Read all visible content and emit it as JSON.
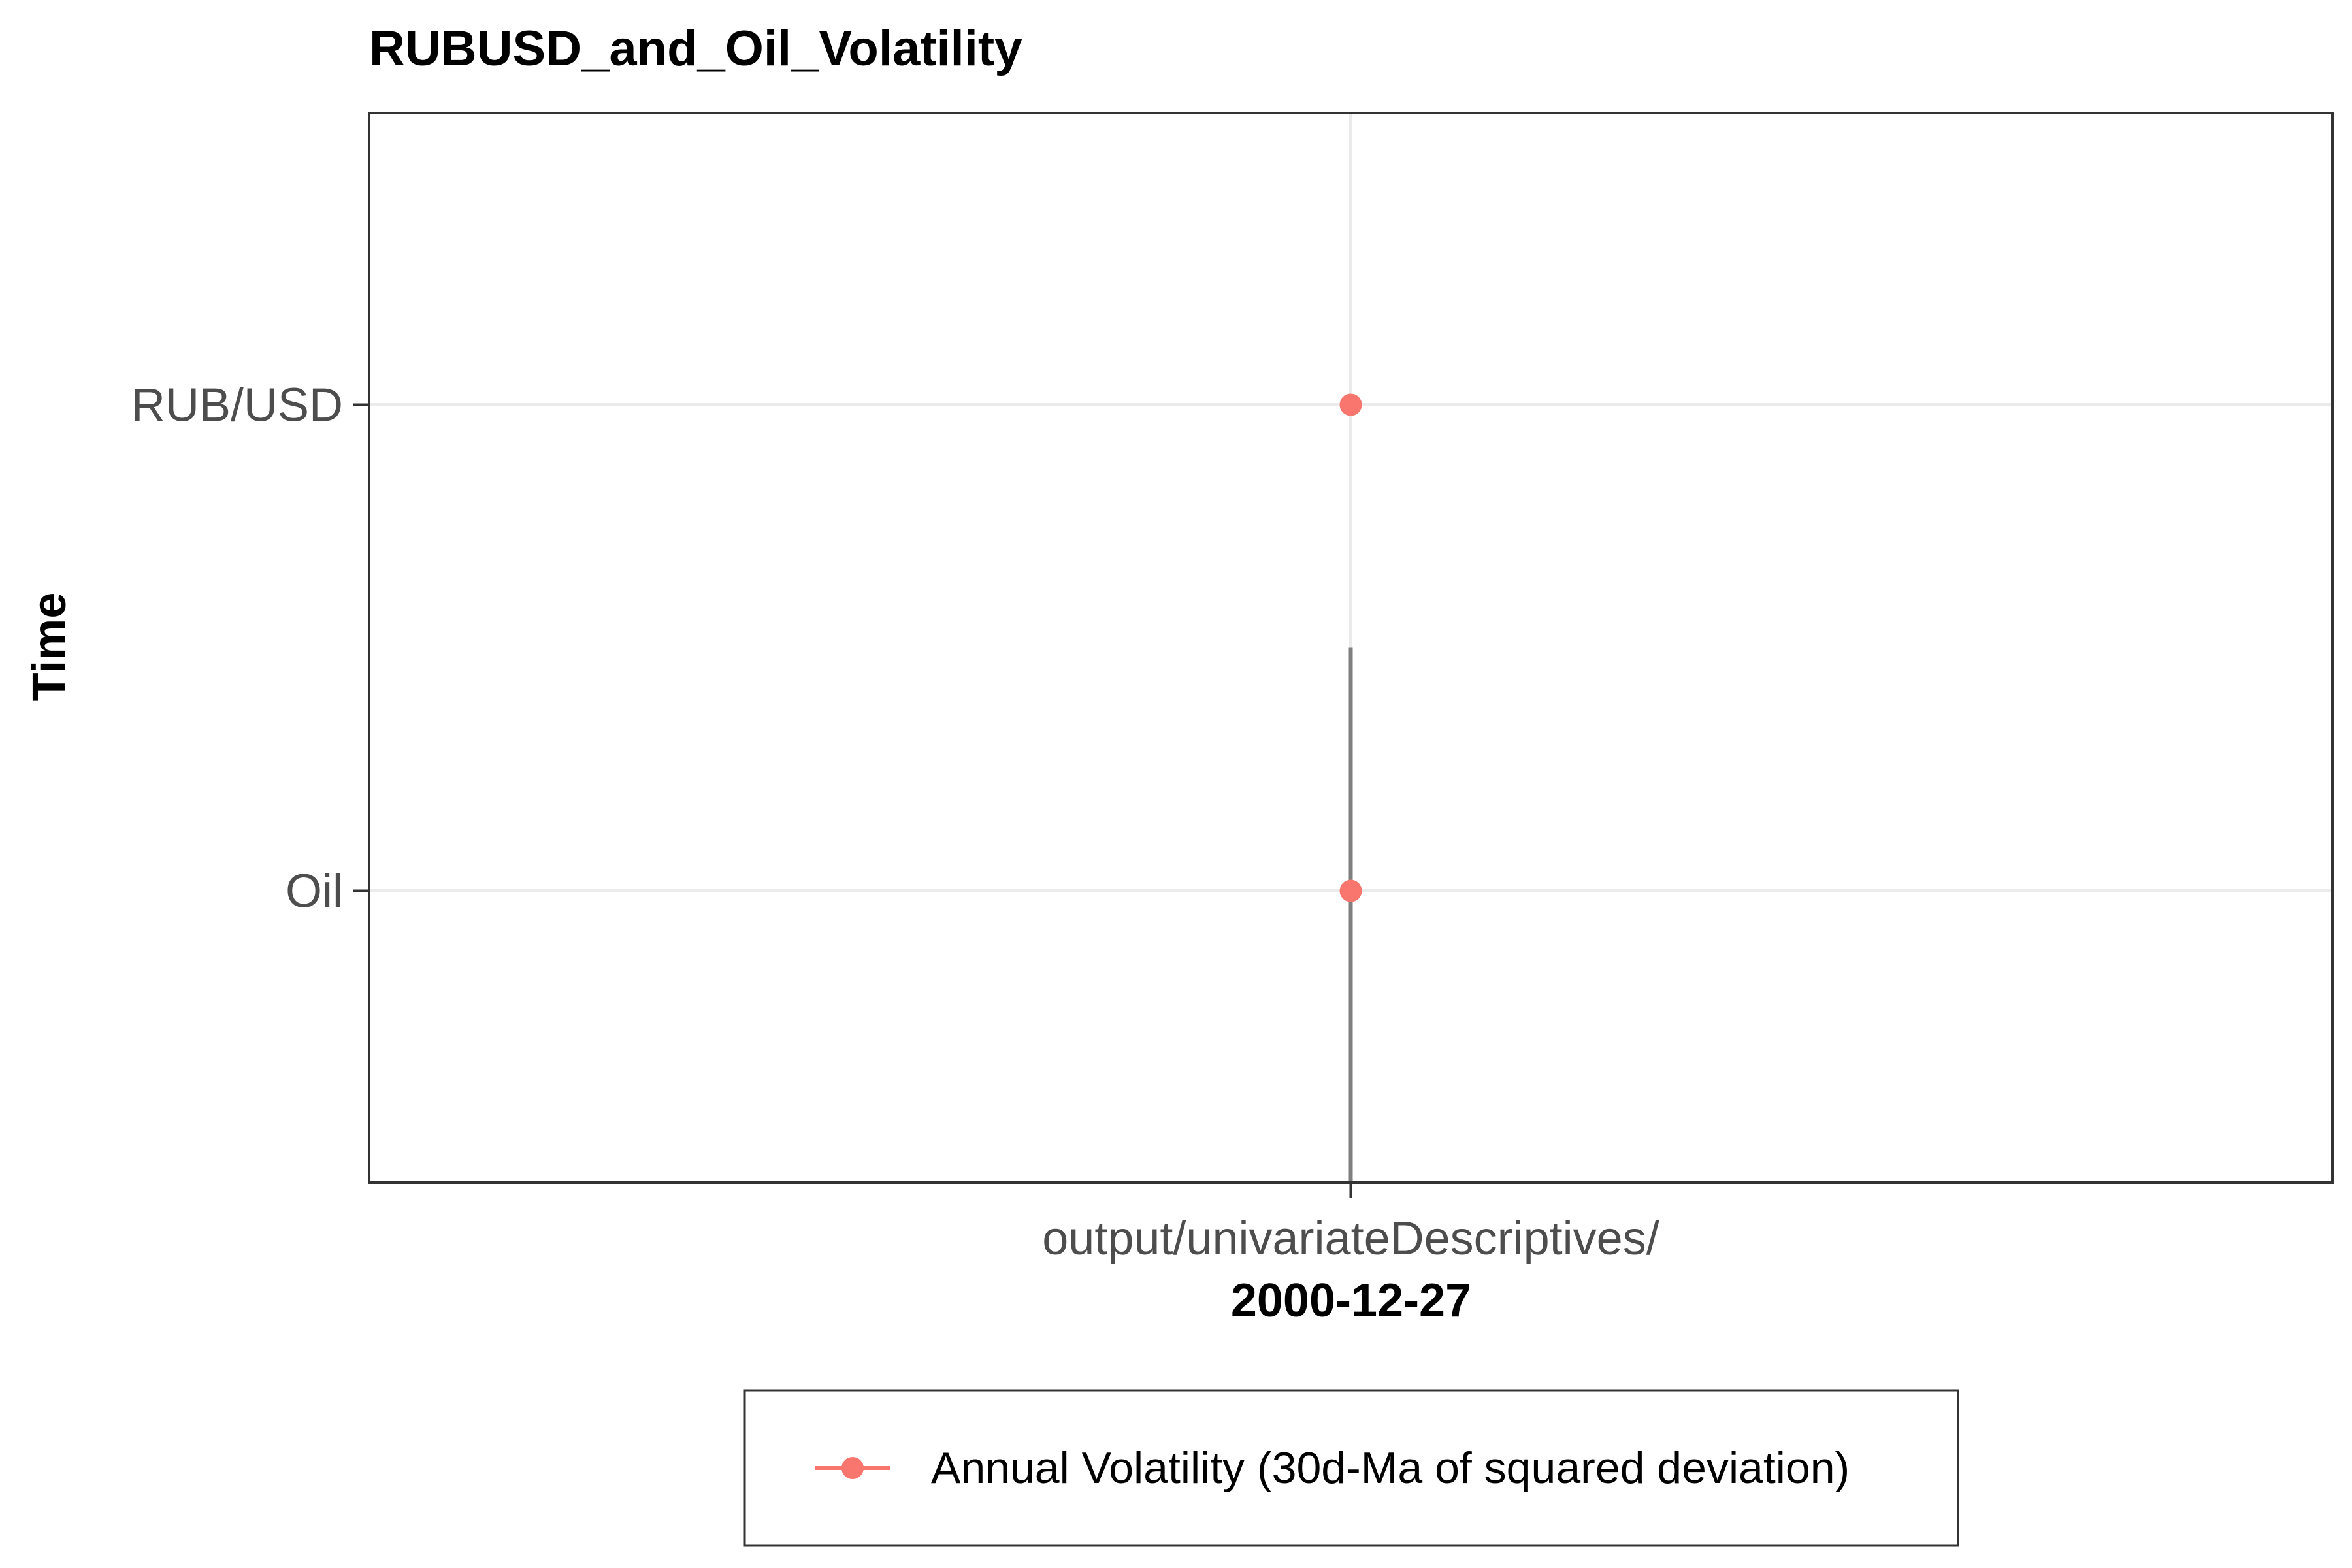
{
  "chart_data": {
    "type": "scatter",
    "title": "RUBUSD_and_Oil_Volatility",
    "ylabel": "Time",
    "xlabel": "2000-12-27",
    "x_tick_labels": [
      "output/univariateDescriptives/"
    ],
    "y_categories": [
      "RUB/USD",
      "Oil"
    ],
    "grid": true,
    "legend_position": "bottom",
    "series": [
      {
        "name": "Annual Volatility (30d-Ma of squared deviation)",
        "color": "#F8766D",
        "points": [
          {
            "x": "output/univariateDescriptives/",
            "y": "RUB/USD"
          },
          {
            "x": "output/univariateDescriptives/",
            "y": "Oil"
          }
        ]
      }
    ],
    "segments": [
      {
        "x": "output/univariateDescriptives/",
        "y_from": "bottom",
        "y_to_between": [
          "RUB/USD",
          "Oil"
        ],
        "color": "#7f7f7f"
      }
    ]
  }
}
